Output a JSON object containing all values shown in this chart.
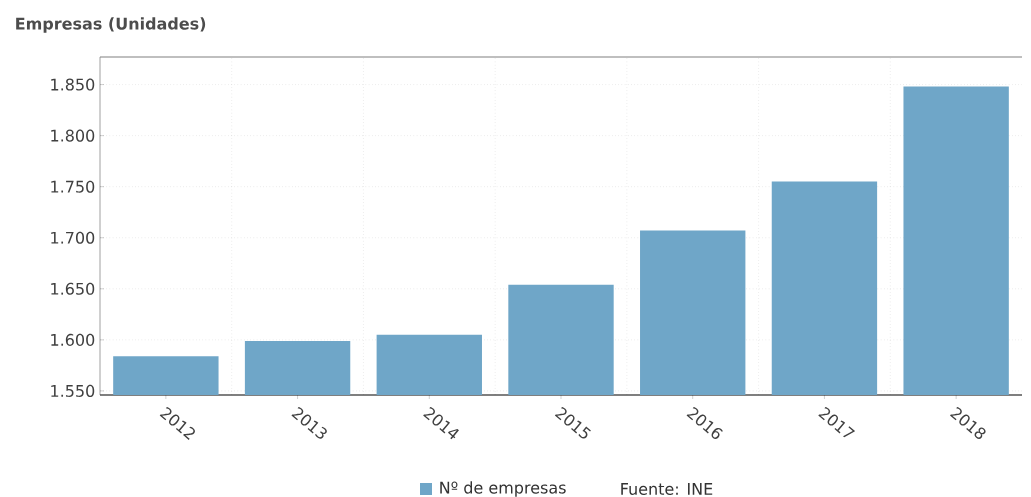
{
  "chart_data": {
    "type": "bar",
    "ylabel": "Empresas (Unidades)",
    "categories": [
      "2012",
      "2013",
      "2014",
      "2015",
      "2016",
      "2017",
      "2018"
    ],
    "series": [
      {
        "name": "Nº de empresas",
        "color": "#6fa6c8",
        "values": [
          1584,
          1599,
          1605,
          1654,
          1707,
          1755,
          1848
        ]
      }
    ],
    "ylim": [
      1546,
      1877
    ],
    "yticks": [
      {
        "value": 1550,
        "label": "1.550"
      },
      {
        "value": 1600,
        "label": "1.600"
      },
      {
        "value": 1650,
        "label": "1.650"
      },
      {
        "value": 1700,
        "label": "1.700"
      },
      {
        "value": 1750,
        "label": "1.750"
      },
      {
        "value": 1800,
        "label": "1.800"
      },
      {
        "value": 1850,
        "label": "1.850"
      }
    ],
    "grid": true,
    "legend": "bottom",
    "annotations": [
      "Fuente: INE"
    ]
  }
}
